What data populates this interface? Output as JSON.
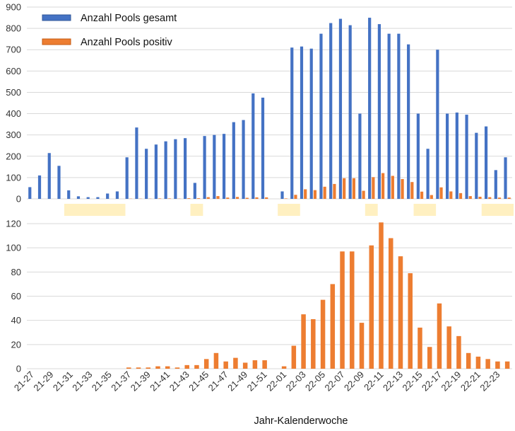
{
  "chart_data": [
    {
      "type": "bar",
      "title": "",
      "xlabel": "",
      "ylabel": "",
      "ylim": [
        0,
        900
      ],
      "y_ticks": [
        0,
        100,
        200,
        300,
        400,
        500,
        600,
        700,
        800,
        900
      ],
      "grid": true,
      "legend_position": "top-left",
      "categories": [
        "21-27",
        "21-28",
        "21-29",
        "21-30",
        "21-31",
        "21-32",
        "21-33",
        "21-34",
        "21-35",
        "21-36",
        "21-37",
        "21-38",
        "21-39",
        "21-40",
        "21-41",
        "21-42",
        "21-43",
        "21-44",
        "21-45",
        "21-46",
        "21-47",
        "21-48",
        "21-49",
        "21-50",
        "21-51",
        "21-52",
        "22-01",
        "22-02",
        "22-03",
        "22-04",
        "22-05",
        "22-06",
        "22-07",
        "22-08",
        "22-09",
        "22-10",
        "22-11",
        "22-12",
        "22-13",
        "22-14",
        "22-15",
        "22-16",
        "22-17",
        "22-18",
        "22-19",
        "22-20",
        "22-21",
        "22-22",
        "22-23",
        "22-24"
      ],
      "series": [
        {
          "name": "Anzahl Pools gesamt",
          "color": "#4472C4",
          "values": [
            55,
            110,
            215,
            155,
            40,
            12,
            8,
            8,
            25,
            35,
            195,
            335,
            235,
            255,
            270,
            280,
            285,
            75,
            295,
            300,
            305,
            360,
            370,
            495,
            475,
            0,
            35,
            710,
            715,
            705,
            775,
            825,
            845,
            815,
            400,
            850,
            820,
            775,
            775,
            725,
            400,
            235,
            700,
            400,
            405,
            395,
            310,
            340,
            135,
            195
          ]
        },
        {
          "name": "Anzahl Pools positiv",
          "color": "#ED7D31",
          "values": [
            0,
            0,
            0,
            0,
            0,
            0,
            0,
            0,
            0,
            0,
            1,
            1,
            1,
            2,
            2,
            1,
            3,
            3,
            8,
            13,
            6,
            9,
            5,
            7,
            7,
            0,
            2,
            19,
            45,
            41,
            57,
            70,
            97,
            97,
            38,
            102,
            121,
            108,
            93,
            79,
            34,
            18,
            54,
            35,
            27,
            13,
            10,
            8,
            6,
            6
          ]
        }
      ]
    },
    {
      "type": "bar",
      "title": "",
      "xlabel": "Jahr-Kalenderwoche",
      "ylabel": "",
      "ylim": [
        0,
        120
      ],
      "y_ticks": [
        0,
        20,
        40,
        60,
        80,
        100,
        120
      ],
      "grid": true,
      "categories": [
        "21-27",
        "21-28",
        "21-29",
        "21-30",
        "21-31",
        "21-32",
        "21-33",
        "21-34",
        "21-35",
        "21-36",
        "21-37",
        "21-38",
        "21-39",
        "21-40",
        "21-41",
        "21-42",
        "21-43",
        "21-44",
        "21-45",
        "21-46",
        "21-47",
        "21-48",
        "21-49",
        "21-50",
        "21-51",
        "21-52",
        "22-01",
        "22-02",
        "22-03",
        "22-04",
        "22-05",
        "22-06",
        "22-07",
        "22-08",
        "22-09",
        "22-10",
        "22-11",
        "22-12",
        "22-13",
        "22-14",
        "22-15",
        "22-16",
        "22-17",
        "22-18",
        "22-19",
        "22-20",
        "22-21",
        "22-22",
        "22-23",
        "22-24"
      ],
      "tick_labels": [
        "21-27",
        "21-29",
        "21-31",
        "21-33",
        "21-35",
        "21-37",
        "21-39",
        "21-41",
        "21-43",
        "21-45",
        "21-47",
        "21-49",
        "21-51",
        "22-01",
        "22-03",
        "22-05",
        "22-07",
        "22-09",
        "22-11",
        "22-13",
        "22-15",
        "22-17",
        "22-19",
        "22-21",
        "22-23"
      ],
      "series": [
        {
          "color": "#ED7D31",
          "values": [
            0,
            0,
            0,
            0,
            0,
            0,
            0,
            0,
            0,
            0,
            1,
            1,
            1,
            2,
            2,
            1,
            3,
            3,
            8,
            13,
            6,
            9,
            5,
            7,
            7,
            0,
            2,
            19,
            45,
            41,
            57,
            70,
            97,
            97,
            38,
            102,
            121,
            108,
            93,
            79,
            34,
            18,
            54,
            35,
            27,
            13,
            10,
            8,
            6,
            6
          ]
        }
      ]
    }
  ],
  "highlight_bands": {
    "color": "#FFF0C1",
    "ranges": [
      [
        "21-31",
        "21-36"
      ],
      [
        "21-44",
        "21-44"
      ],
      [
        "22-01",
        "22-02"
      ],
      [
        "22-10",
        "22-10"
      ],
      [
        "22-15",
        "22-16"
      ],
      [
        "22-22",
        "22-24"
      ]
    ]
  }
}
